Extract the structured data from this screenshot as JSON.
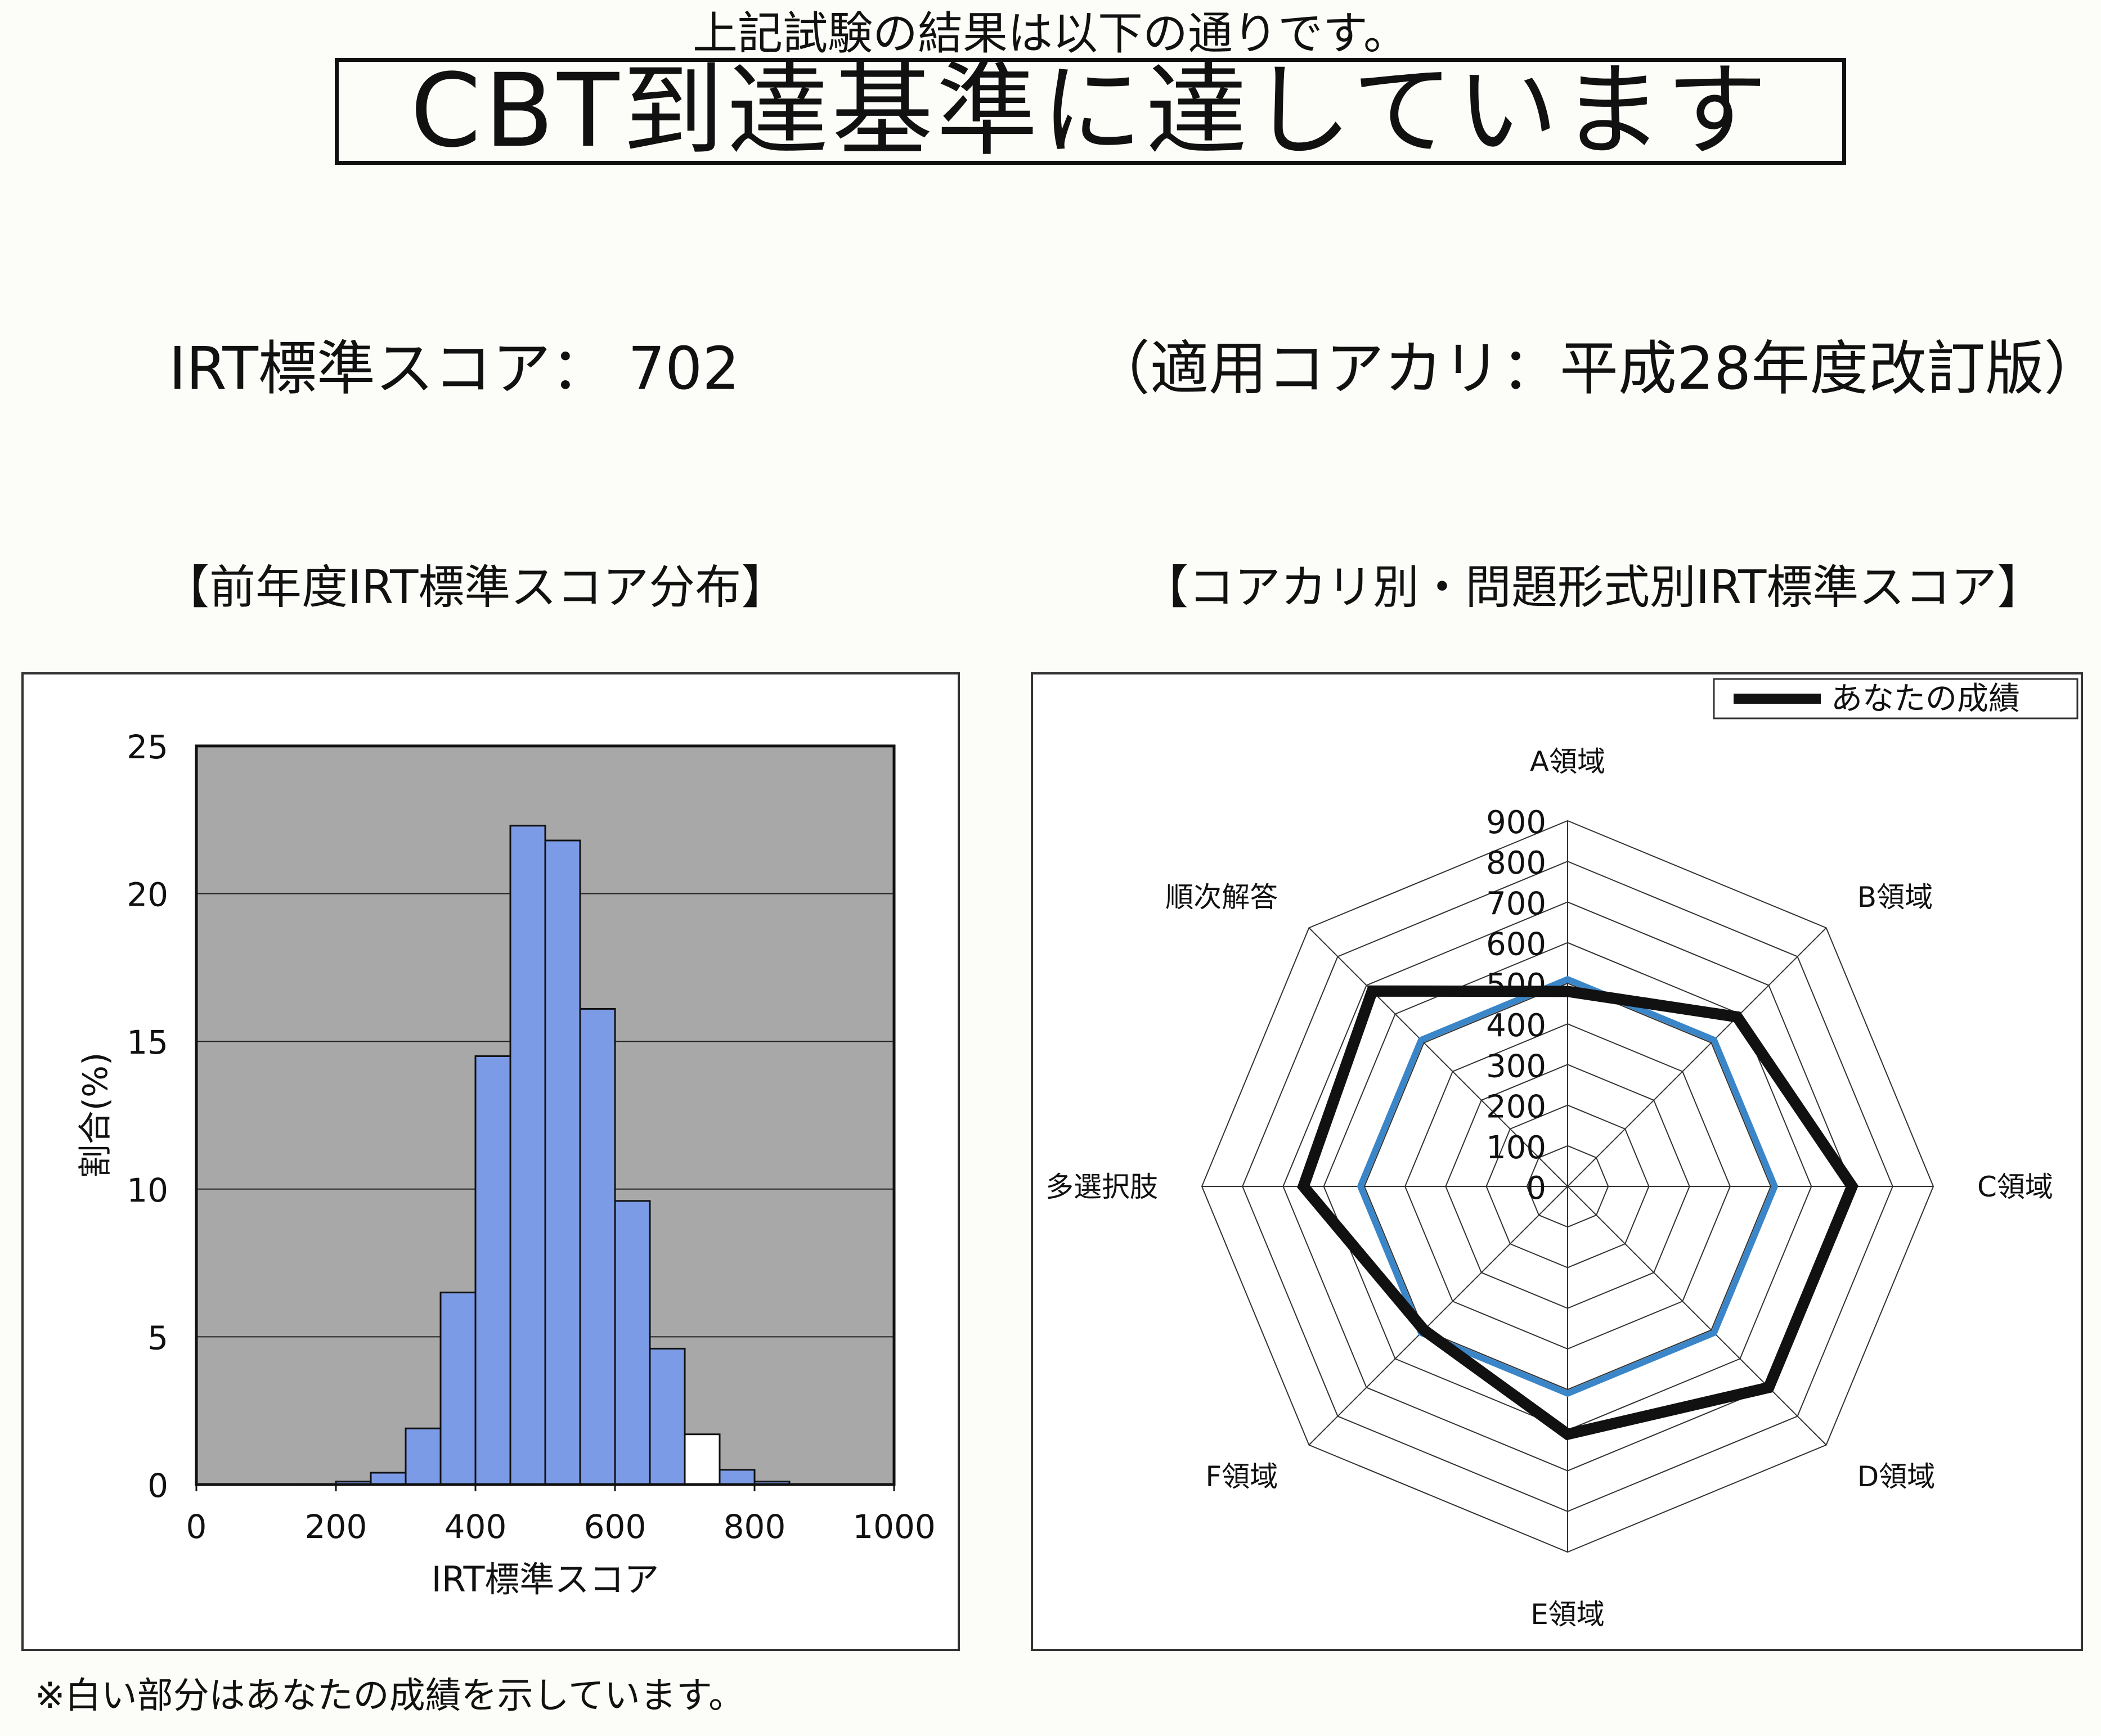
{
  "header": {
    "intro": "上記試験の結果は以下の通りです。",
    "verdict": "CBT到達基準に達しています"
  },
  "score": {
    "line": "IRT標準スコア： 702",
    "curriculum": "（適用コアカリ：平成28年度改訂版）"
  },
  "sections": {
    "hist_title": "【前年度IRT標準スコア分布】",
    "radar_title": "【コアカリ別・問題形式別IRT標準スコア】"
  },
  "footnote": "※白い部分はあなたの成績を示しています。",
  "colors": {
    "bar_fill": "#7c9be6",
    "bar_highlight": "#ffffff",
    "plot_bg": "#a8a8a8",
    "average_line": "#3a86c8",
    "your_line": "#111111"
  },
  "chart_data": [
    {
      "type": "bar",
      "xlabel": "IRT標準スコア",
      "ylabel": "割合(%)",
      "xlim": [
        0,
        1000
      ],
      "ylim": [
        0,
        25
      ],
      "xticks": [
        0,
        200,
        400,
        600,
        800,
        1000
      ],
      "yticks": [
        0,
        5,
        10,
        15,
        20,
        25
      ],
      "grid": "horizontal",
      "bin_width": 50,
      "bins": [
        {
          "x0": 150,
          "value": 0.02
        },
        {
          "x0": 200,
          "value": 0.1
        },
        {
          "x0": 250,
          "value": 0.4
        },
        {
          "x0": 300,
          "value": 1.9
        },
        {
          "x0": 350,
          "value": 6.5
        },
        {
          "x0": 400,
          "value": 14.5
        },
        {
          "x0": 450,
          "value": 22.3
        },
        {
          "x0": 500,
          "value": 21.8
        },
        {
          "x0": 550,
          "value": 16.1
        },
        {
          "x0": 600,
          "value": 9.6
        },
        {
          "x0": 650,
          "value": 4.6
        },
        {
          "x0": 700,
          "value": 1.7,
          "highlight": true
        },
        {
          "x0": 750,
          "value": 0.5
        },
        {
          "x0": 800,
          "value": 0.1
        }
      ]
    },
    {
      "type": "radar",
      "axes": [
        "A領域",
        "B領域",
        "C領域",
        "D領域",
        "E領域",
        "F領域",
        "多選択肢",
        "順次解答"
      ],
      "rlim": [
        0,
        900
      ],
      "rticks": [
        0,
        100,
        200,
        300,
        400,
        500,
        600,
        700,
        800,
        900
      ],
      "legend": "top-right",
      "series": [
        {
          "name": "",
          "color": "#3a86c8",
          "values": [
            510,
            510,
            510,
            510,
            510,
            510,
            510,
            510
          ]
        },
        {
          "name": "あなたの成績",
          "color": "#111111",
          "values": [
            480,
            590,
            700,
            700,
            610,
            500,
            650,
            680
          ]
        }
      ]
    }
  ]
}
